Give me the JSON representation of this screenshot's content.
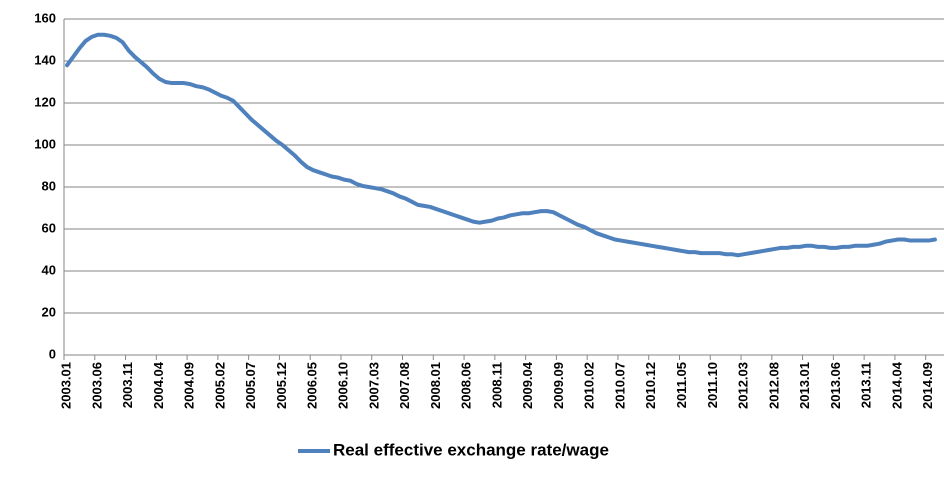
{
  "chart_data": {
    "type": "line",
    "categories": [
      "2003.01",
      null,
      null,
      null,
      null,
      "2003.06",
      null,
      null,
      null,
      null,
      "2003.11",
      null,
      null,
      null,
      null,
      "2004.04",
      null,
      null,
      null,
      null,
      "2004.09",
      null,
      null,
      null,
      null,
      "2005.02",
      null,
      null,
      null,
      null,
      "2005.07",
      null,
      null,
      null,
      null,
      "2005.12",
      null,
      null,
      null,
      null,
      "2006.05",
      null,
      null,
      null,
      null,
      "2006.10",
      null,
      null,
      null,
      null,
      "2007.03",
      null,
      null,
      null,
      null,
      "2007.08",
      null,
      null,
      null,
      null,
      "2008.01",
      null,
      null,
      null,
      null,
      "2008.06",
      null,
      null,
      null,
      null,
      "2008.11",
      null,
      null,
      null,
      null,
      "2009.04",
      null,
      null,
      null,
      null,
      "2009.09",
      null,
      null,
      null,
      null,
      "2010.02",
      null,
      null,
      null,
      null,
      "2010.07",
      null,
      null,
      null,
      null,
      "2010.12",
      null,
      null,
      null,
      null,
      "2011.05",
      null,
      null,
      null,
      null,
      "2011.10",
      null,
      null,
      null,
      null,
      "2012.03",
      null,
      null,
      null,
      null,
      "2012.08",
      null,
      null,
      null,
      null,
      "2013.01",
      null,
      null,
      null,
      null,
      "2013.06",
      null,
      null,
      null,
      null,
      "2013.11",
      null,
      null,
      null,
      null,
      "2014.04",
      null,
      null,
      null,
      null,
      "2014.09",
      null
    ],
    "series": [
      {
        "name": "Real effective exchange rate/wage",
        "color": "#4f81bd",
        "values": [
          138,
          142,
          146,
          149.5,
          151.5,
          152.5,
          152.5,
          152,
          151,
          149,
          145,
          142,
          139.5,
          137,
          134,
          131.5,
          130,
          129.5,
          129.5,
          129.5,
          129,
          128,
          127.5,
          126.5,
          125,
          123.5,
          122.5,
          121,
          118,
          115,
          112,
          109.5,
          107,
          104.5,
          102,
          100,
          97.5,
          95,
          92,
          89.5,
          88,
          87,
          86,
          85,
          84.5,
          83.5,
          83,
          81.5,
          80.5,
          80,
          79.5,
          79,
          78,
          77,
          75.5,
          74.5,
          73,
          71.5,
          71,
          70.5,
          69.5,
          68.5,
          67.5,
          66.5,
          65.5,
          64.5,
          63.5,
          63,
          63.5,
          64,
          65,
          65.5,
          66.5,
          67,
          67.5,
          67.5,
          68,
          68.5,
          68.5,
          68,
          66.5,
          65,
          63.5,
          62,
          61,
          59.5,
          58,
          57,
          56,
          55,
          54.5,
          54,
          53.5,
          53,
          52.5,
          52,
          51.5,
          51,
          50.5,
          50,
          49.5,
          49,
          49,
          48.5,
          48.5,
          48.5,
          48.5,
          48,
          48,
          47.5,
          48,
          48.5,
          49,
          49.5,
          50,
          50.5,
          51,
          51,
          51.5,
          51.5,
          52,
          52,
          51.5,
          51.5,
          51,
          51,
          51.5,
          51.5,
          52,
          52,
          52,
          52.5,
          53,
          54,
          54.5,
          55,
          55,
          54.5,
          54.5,
          54.5,
          54.5,
          55
        ]
      }
    ],
    "ylim": [
      0,
      160
    ],
    "yticks": [
      0,
      20,
      40,
      60,
      80,
      100,
      120,
      140,
      160
    ],
    "grid": true,
    "legend": "bottom"
  }
}
